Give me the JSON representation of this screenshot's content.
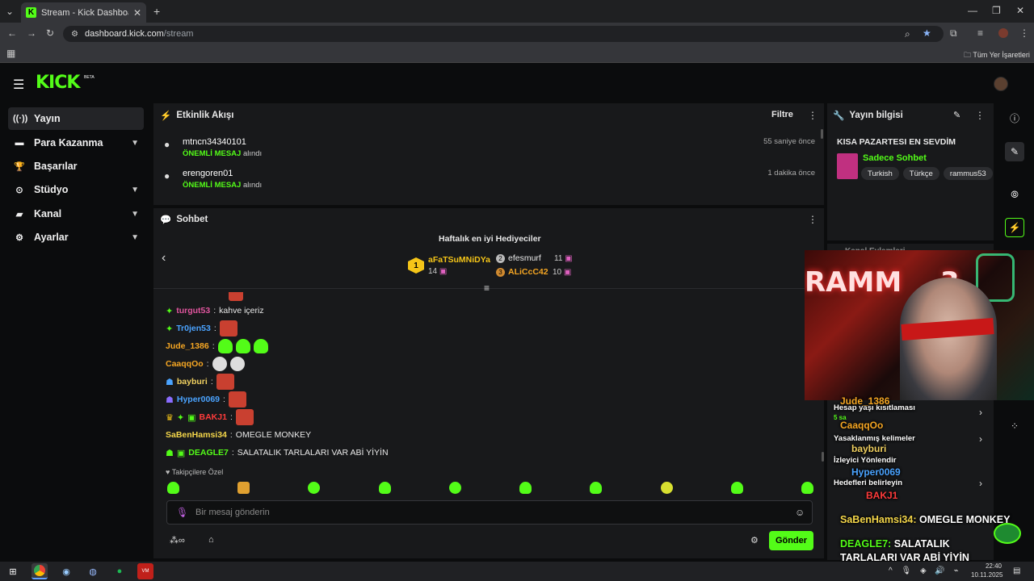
{
  "browser": {
    "tab_title": "Stream - Kick Dashboard",
    "tab_favicon": "K",
    "new_tab": "+",
    "url_host": "dashboard.kick.com",
    "url_path": "/stream",
    "bookmarks_label": "Tüm Yer İşaretleri"
  },
  "app": {
    "logo": "KICK",
    "beta": "BETA"
  },
  "sidebar": {
    "items": [
      {
        "label": "Yayın",
        "icon": "broadcast-icon"
      },
      {
        "label": "Para Kazanma",
        "icon": "money-icon"
      },
      {
        "label": "Başarılar",
        "icon": "trophy-icon"
      },
      {
        "label": "Stüdyo",
        "icon": "studio-icon"
      },
      {
        "label": "Kanal",
        "icon": "channel-icon"
      },
      {
        "label": "Ayarlar",
        "icon": "gear-icon"
      }
    ]
  },
  "activity": {
    "title": "Etkinlik Akışı",
    "filter": "Filtre",
    "events": [
      {
        "user": "mtncn34340101",
        "type": "ÖNEMLİ MESAJ",
        "suffix": "alındı",
        "time": "55 saniye önce"
      },
      {
        "user": "erengoren01",
        "type": "ÖNEMLİ MESAJ",
        "suffix": "alındı",
        "time": "1 dakika önce"
      }
    ]
  },
  "chat": {
    "title": "Sohbet",
    "top_gifters_title": "Haftalık en iyi Hediyeciler",
    "gifters": [
      {
        "rank": "1",
        "name": "aFaTSuMNiDYa",
        "count": "14"
      },
      {
        "rank": "2",
        "name": "efesmurf",
        "count": "11"
      },
      {
        "rank": "3",
        "name": "ALiCcC42",
        "count": "10"
      }
    ],
    "messages": [
      {
        "user": "turgut53",
        "text": "kahve içeriz",
        "color": "#e0559e"
      },
      {
        "user": "Tr0jen53",
        "text": "",
        "color": "#4aa3ff"
      },
      {
        "user": "Jude_1386",
        "text": "",
        "color": "#f5a623"
      },
      {
        "user": "CaaqqOo",
        "text": "",
        "color": "#f5a623"
      },
      {
        "user": "bayburi",
        "text": "",
        "color": "#f0d060"
      },
      {
        "user": "Hyper0069",
        "text": "",
        "color": "#4aa3ff"
      },
      {
        "user": "BAKJ1",
        "text": "",
        "color": "#ff3b3b"
      },
      {
        "user": "SaBenHamsi34",
        "text": "OMEGLE MONKEY",
        "color": "#f5d74a"
      },
      {
        "user": "DEAGLE7",
        "text": "SALATALIK TARLALARI VAR ABİ YİYİN",
        "color": "#53fc18"
      }
    ],
    "followers_only": "Takipçilere Özel",
    "input_placeholder": "Bir mesaj gönderin",
    "send": "Gönder"
  },
  "stream_info": {
    "title": "Yayın bilgisi",
    "stream_title": "KISA PAZARTESI EN SEVDİM",
    "category": "Sadece Sohbet",
    "tags": [
      "Turkish",
      "Türkçe",
      "rammus53"
    ],
    "partial_panel": "Kanal Eylemleri"
  },
  "webcam_overlay": {
    "sign_text": "RAMM",
    "sign_text2": "3",
    "menu_items": [
      "Hesap yaşı kısıtlaması",
      "Yasaklanmış kelimeler",
      "İzleyici Yönlendir",
      "Hedefleri belirleyin"
    ],
    "small_time": "5 sa",
    "overlay_chat": [
      {
        "user": "Jude_1386",
        "text": ""
      },
      {
        "user": "CaaqqOo",
        "text": ""
      },
      {
        "user": "bayburi",
        "text": ""
      },
      {
        "user": "Hyper0069",
        "text": ""
      },
      {
        "user": "BAKJ1",
        "text": ""
      },
      {
        "user": "SaBenHamsi34",
        "text": "OMEGLE MONKEY"
      },
      {
        "user": "DEAGLE7",
        "text": "SALATALIK TARLALARI VAR ABİ YİYİN"
      }
    ]
  },
  "taskbar": {
    "time": "22:40",
    "date": "10.11.2025"
  },
  "colors": {
    "brand": "#53fc18",
    "panel": "#18191b",
    "bg": "#0b0c0d"
  }
}
